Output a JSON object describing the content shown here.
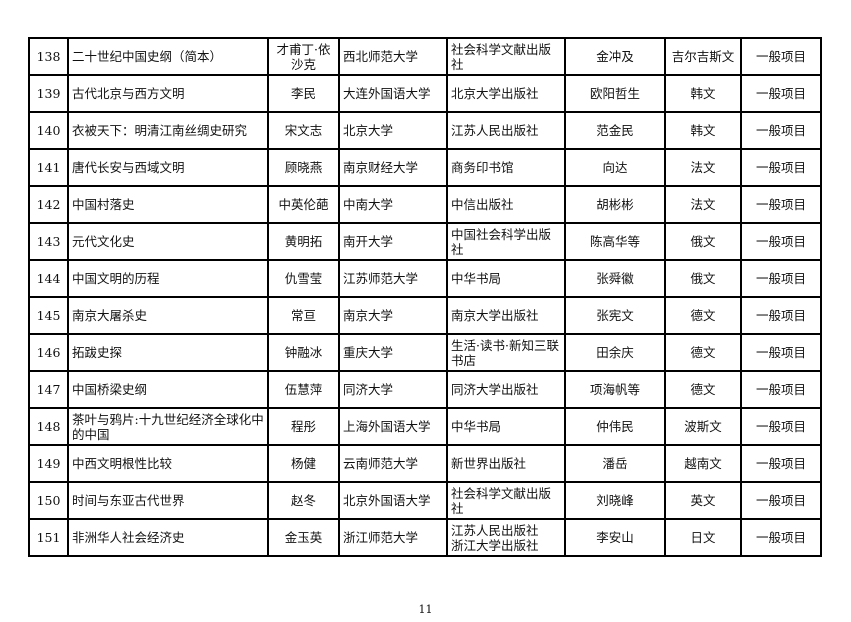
{
  "rows": [
    {
      "no": "138",
      "title": "二十世纪中国史纲（简本）",
      "author": "才甫丁·依沙克",
      "institution": "西北师范大学",
      "publisher": "社会科学文献出版社",
      "translator": "金冲及",
      "language": "吉尔吉斯文",
      "type": "一般项目"
    },
    {
      "no": "139",
      "title": "古代北京与西方文明",
      "author": "李民",
      "institution": "大连外国语大学",
      "publisher": "北京大学出版社",
      "translator": "欧阳哲生",
      "language": "韩文",
      "type": "一般项目"
    },
    {
      "no": "140",
      "title": "衣被天下：明清江南丝绸史研究",
      "author": "宋文志",
      "institution": "北京大学",
      "publisher": "江苏人民出版社",
      "translator": "范金民",
      "language": "韩文",
      "type": "一般项目"
    },
    {
      "no": "141",
      "title": "唐代长安与西域文明",
      "author": "顾晓燕",
      "institution": "南京财经大学",
      "publisher": "商务印书馆",
      "translator": "向达",
      "language": "法文",
      "type": "一般项目"
    },
    {
      "no": "142",
      "title": "中国村落史",
      "author": "中英伦葩",
      "institution": "中南大学",
      "publisher": "中信出版社",
      "translator": "胡彬彬",
      "language": "法文",
      "type": "一般项目"
    },
    {
      "no": "143",
      "title": "元代文化史",
      "author": "黄明拓",
      "institution": "南开大学",
      "publisher": "中国社会科学出版社",
      "translator": "陈高华等",
      "language": "俄文",
      "type": "一般项目"
    },
    {
      "no": "144",
      "title": "中国文明的历程",
      "author": "仇雪莹",
      "institution": "江苏师范大学",
      "publisher": "中华书局",
      "translator": "张舜徽",
      "language": "俄文",
      "type": "一般项目"
    },
    {
      "no": "145",
      "title": "南京大屠杀史",
      "author": "常亘",
      "institution": "南京大学",
      "publisher": "南京大学出版社",
      "translator": "张宪文",
      "language": "德文",
      "type": "一般项目"
    },
    {
      "no": "146",
      "title": "拓跋史探",
      "author": "钟融冰",
      "institution": "重庆大学",
      "publisher": "生活·读书·新知三联书店",
      "translator": "田余庆",
      "language": "德文",
      "type": "一般项目"
    },
    {
      "no": "147",
      "title": "中国桥梁史纲",
      "author": "伍慧萍",
      "institution": "同济大学",
      "publisher": "同济大学出版社",
      "translator": "项海帆等",
      "language": "德文",
      "type": "一般项目"
    },
    {
      "no": "148",
      "title": "茶叶与鸦片:十九世纪经济全球化中的中国",
      "author": "程彤",
      "institution": "上海外国语大学",
      "publisher": "中华书局",
      "translator": "仲伟民",
      "language": "波斯文",
      "type": "一般项目"
    },
    {
      "no": "149",
      "title": "中西文明根性比较",
      "author": "杨健",
      "institution": "云南师范大学",
      "publisher": "新世界出版社",
      "translator": "潘岳",
      "language": "越南文",
      "type": "一般项目"
    },
    {
      "no": "150",
      "title": "时间与东亚古代世界",
      "author": "赵冬",
      "institution": "北京外国语大学",
      "publisher": "社会科学文献出版社",
      "translator": "刘晓峰",
      "language": "英文",
      "type": "一般项目"
    },
    {
      "no": "151",
      "title": "非洲华人社会经济史",
      "author": "金玉英",
      "institution": "浙江师范大学",
      "publisher": "江苏人民出版社\n浙江大学出版社",
      "translator": "李安山",
      "language": "日文",
      "type": "一般项目"
    }
  ],
  "page_number": "11"
}
